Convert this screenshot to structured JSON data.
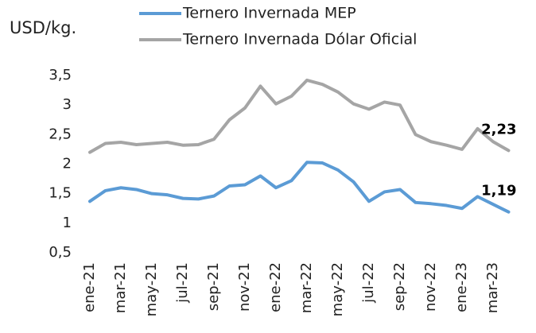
{
  "chart_data": {
    "type": "line",
    "y_label": "USD/kg.",
    "categories": [
      "ene-21",
      null,
      "mar-21",
      null,
      "may-21",
      null,
      "jul-21",
      null,
      "sep-21",
      null,
      "nov-21",
      null,
      "ene-22",
      null,
      "mar-22",
      null,
      "may-22",
      null,
      "jul-22",
      null,
      "sep-22",
      null,
      "nov-22",
      null,
      "ene-23",
      null,
      "mar-23",
      null
    ],
    "series": [
      {
        "name": "Ternero Invernada MEP",
        "color": "#5b9bd5",
        "values": [
          1.37,
          1.55,
          1.6,
          1.57,
          1.5,
          1.48,
          1.42,
          1.41,
          1.46,
          1.63,
          1.65,
          1.8,
          1.6,
          1.72,
          2.03,
          2.02,
          1.9,
          1.7,
          1.37,
          1.53,
          1.57,
          1.35,
          1.33,
          1.3,
          1.25,
          1.45,
          1.32,
          1.19
        ],
        "value_labels": [
          null,
          null,
          null,
          null,
          null,
          null,
          null,
          null,
          null,
          null,
          null,
          null,
          null,
          null,
          null,
          null,
          null,
          null,
          null,
          null,
          null,
          null,
          null,
          null,
          null,
          null,
          null,
          "1,19"
        ]
      },
      {
        "name": "Ternero Invernada Dólar Oficial",
        "color": "#a5a5a5",
        "values": [
          2.2,
          2.35,
          2.37,
          2.33,
          2.35,
          2.37,
          2.32,
          2.33,
          2.42,
          2.75,
          2.95,
          3.32,
          3.02,
          3.15,
          3.42,
          3.35,
          3.22,
          3.02,
          2.93,
          3.05,
          3.0,
          2.5,
          2.38,
          2.32,
          2.25,
          2.6,
          2.38,
          2.23
        ],
        "value_labels": [
          null,
          null,
          null,
          null,
          null,
          null,
          null,
          null,
          null,
          null,
          null,
          null,
          null,
          null,
          null,
          null,
          null,
          null,
          null,
          null,
          null,
          null,
          null,
          null,
          null,
          null,
          null,
          "2,23"
        ]
      }
    ],
    "ylim": [
      0.5,
      3.5
    ],
    "yticks": [
      {
        "value": 0.5,
        "label": "0,5"
      },
      1,
      {
        "value": 1.5,
        "label": "1,5"
      },
      2,
      {
        "value": 2.5,
        "label": "2,5"
      },
      3,
      {
        "value": 3.5,
        "label": "3,5"
      }
    ],
    "grid": false
  }
}
